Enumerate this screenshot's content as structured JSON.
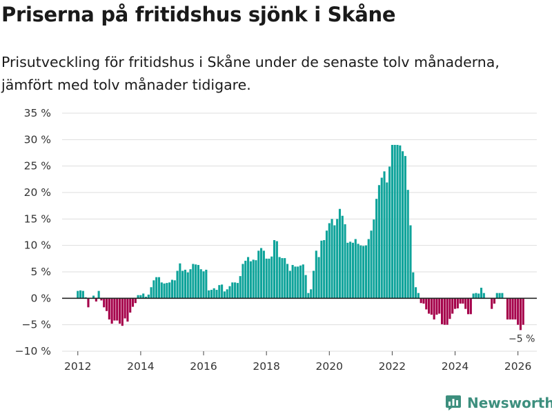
{
  "title": "Priserna på fritidshus sjönk i Skåne",
  "subtitle": "Prisutveckling för fritidshus i Skåne under de senaste tolv månaderna, jämfört med tolv månader tidigare.",
  "brand": {
    "name": "Newsworthy",
    "icon": "newsworthy-logo-icon"
  },
  "colors": {
    "positive": "#0ea39a",
    "negative": "#a5004a",
    "grid": "#dddddd",
    "brand": "#3d8f7e"
  },
  "chart_data": {
    "type": "bar",
    "title": "Priserna på fritidshus sjönk i Skåne",
    "xlabel": "",
    "ylabel": "",
    "ylim": [
      -10,
      35
    ],
    "xlim": [
      2011.5,
      2026.6
    ],
    "y_ticks": [
      -10,
      -5,
      0,
      5,
      10,
      15,
      20,
      25,
      30,
      35
    ],
    "y_tick_labels": [
      "−10 %",
      "−5 %",
      "0 %",
      "5 %",
      "10 %",
      "15 %",
      "20 %",
      "25 %",
      "30 %",
      "35 %"
    ],
    "x_ticks": [
      2012,
      2014,
      2016,
      2018,
      2020,
      2022,
      2024,
      2026
    ],
    "x_tick_labels": [
      "2012",
      "2014",
      "2016",
      "2018",
      "2020",
      "2022",
      "2024",
      "2026"
    ],
    "start": "2012-01",
    "frequency": "monthly",
    "unit": "%",
    "values": [
      1.4,
      1.5,
      1.4,
      0.2,
      -1.7,
      0.1,
      0.5,
      -0.6,
      1.4,
      -0.4,
      -1.7,
      -2.4,
      -4.0,
      -4.8,
      -4.2,
      -4.2,
      -4.8,
      -5.2,
      -3.8,
      -4.4,
      -2.7,
      -1.6,
      -0.9,
      0.6,
      0.6,
      0.9,
      0.3,
      0.7,
      2.1,
      3.4,
      4.0,
      4.0,
      3.0,
      2.8,
      2.9,
      3.0,
      3.5,
      3.4,
      5.2,
      6.6,
      5.2,
      5.4,
      4.9,
      5.5,
      6.5,
      6.4,
      6.3,
      5.5,
      5.1,
      5.4,
      1.5,
      1.6,
      1.9,
      1.6,
      2.5,
      2.6,
      1.3,
      1.7,
      2.3,
      3.0,
      3.0,
      2.9,
      4.2,
      6.5,
      7.1,
      7.8,
      7.0,
      7.3,
      7.2,
      9.0,
      9.5,
      9.0,
      7.5,
      7.5,
      7.9,
      11.0,
      10.8,
      7.8,
      7.6,
      7.6,
      6.5,
      5.2,
      6.3,
      6.0,
      6.0,
      6.2,
      6.4,
      4.4,
      1.0,
      1.7,
      5.2,
      9.0,
      7.8,
      10.9,
      11.0,
      12.8,
      14.2,
      15.0,
      13.8,
      15.0,
      16.9,
      15.6,
      14.0,
      10.5,
      10.7,
      10.5,
      11.2,
      10.3,
      10.0,
      9.9,
      10.0,
      11.2,
      12.8,
      14.9,
      18.8,
      21.4,
      22.8,
      24.0,
      21.9,
      24.9,
      29.0,
      29.0,
      29.0,
      28.9,
      27.8,
      26.9,
      20.5,
      13.8,
      4.9,
      2.1,
      1.0,
      -0.9,
      -1.0,
      -2.1,
      -2.9,
      -3.1,
      -4.0,
      -3.1,
      -2.9,
      -4.9,
      -5.0,
      -5.0,
      -3.9,
      -2.9,
      -2.0,
      -1.9,
      -1.0,
      -1.0,
      -2.0,
      -3.0,
      -3.0,
      0.9,
      1.0,
      0.9,
      2.0,
      1.0,
      null,
      null,
      -2.0,
      -1.0,
      1.0,
      1.0,
      1.0,
      null,
      -4.0,
      -4.0,
      -4.0,
      -4.0,
      -5.0,
      -6.0,
      -5.0
    ],
    "annotations": [
      {
        "label": "−5 %",
        "value": -5,
        "date": "2026-03"
      }
    ]
  }
}
